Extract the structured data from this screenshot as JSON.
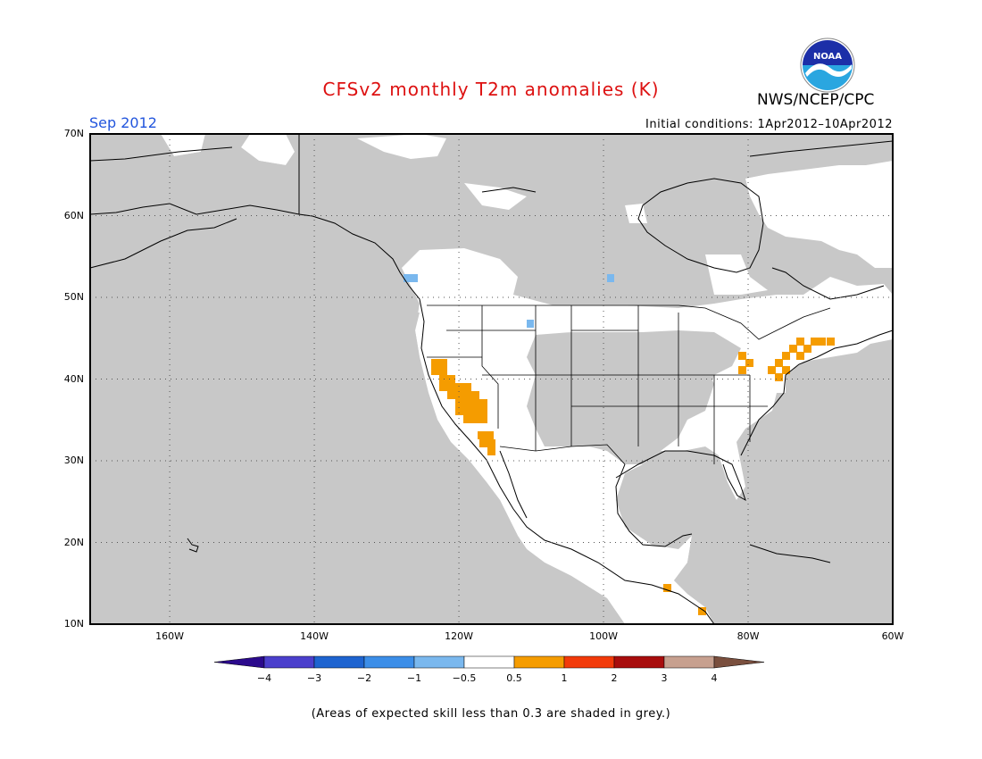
{
  "title": "CFSv2 monthly T2m anomalies (K)",
  "month": "Sep 2012",
  "initial_conditions": "Initial conditions: 1Apr2012–10Apr2012",
  "agency": "NWS/NCEP/CPC",
  "logo_text": "NOAA",
  "footnote": "(Areas of expected skill less than 0.3 are shaded in grey.)",
  "lat_labels": [
    "70N",
    "60N",
    "50N",
    "40N",
    "30N",
    "20N",
    "10N"
  ],
  "lon_labels": [
    "160W",
    "140W",
    "120W",
    "100W",
    "80W",
    "60W"
  ],
  "colorbar": {
    "labels": [
      "−4",
      "−3",
      "−2",
      "−1",
      "−0.5",
      "0.5",
      "1",
      "2",
      "3",
      "4"
    ],
    "colors": [
      "#2b0a8c",
      "#4b3fcc",
      "#1e64d0",
      "#3c8ee8",
      "#7ab8ee",
      "#ffffff",
      "#f59c00",
      "#f23a0a",
      "#a80d0d",
      "#c7a08f",
      "#7a4f3e"
    ]
  },
  "colors": {
    "skill_grey": "#c8c8c8",
    "warm": "#f59c00",
    "cool": "#7ab8ee",
    "title": "#dd1111",
    "month": "#2255dd"
  }
}
